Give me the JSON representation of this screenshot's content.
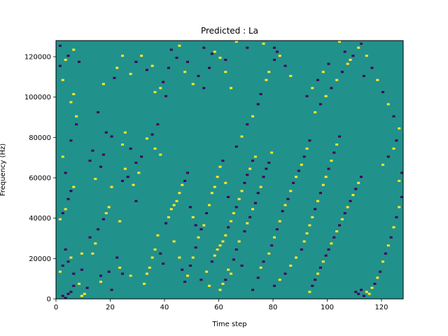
{
  "chart_data": {
    "type": "heatmap",
    "title": "Predicted : La",
    "xlabel": "Time step",
    "ylabel": "Frequency (Hz)",
    "xlim": [
      0,
      128
    ],
    "ylim": [
      0,
      128000
    ],
    "xticks": [
      0,
      20,
      40,
      60,
      80,
      100,
      120
    ],
    "yticks": [
      0,
      20000,
      40000,
      60000,
      80000,
      100000,
      120000
    ],
    "xtick_labels": [
      "0",
      "20",
      "40",
      "60",
      "80",
      "100",
      "120"
    ],
    "ytick_labels": [
      "0",
      "20000",
      "40000",
      "60000",
      "80000",
      "100000",
      "120000"
    ],
    "grid": false,
    "colormap": "viridis",
    "value_levels": [
      -1,
      0,
      1
    ],
    "colors": {
      "-1": "#440154",
      "0": "#21918c",
      "1": "#fde725"
    },
    "background_value": 0,
    "time_bins": 128,
    "freq_bins": 128,
    "cells": [
      [
        2,
        1,
        -1
      ],
      [
        3,
        0,
        -1
      ],
      [
        4,
        2,
        -1
      ],
      [
        5,
        3,
        -1
      ],
      [
        6,
        6,
        -1
      ],
      [
        8,
        7,
        1
      ],
      [
        9,
        1,
        1
      ],
      [
        10,
        2,
        1
      ],
      [
        11,
        5,
        -1
      ],
      [
        6,
        12,
        -1
      ],
      [
        9,
        14,
        -1
      ],
      [
        1,
        13,
        1
      ],
      [
        2,
        16,
        -1
      ],
      [
        4,
        18,
        -1
      ],
      [
        5,
        20,
        1
      ],
      [
        3,
        24,
        -1
      ],
      [
        9,
        22,
        1
      ],
      [
        13,
        22,
        1
      ],
      [
        16,
        11,
        -1
      ],
      [
        16,
        8,
        1
      ],
      [
        19,
        13,
        -1
      ],
      [
        20,
        4,
        -1
      ],
      [
        1,
        39,
        1
      ],
      [
        2,
        42,
        -1
      ],
      [
        3,
        44,
        1
      ],
      [
        4,
        49,
        -1
      ],
      [
        5,
        53,
        -1
      ],
      [
        6,
        55,
        1
      ],
      [
        3,
        62,
        -1
      ],
      [
        2,
        70,
        1
      ],
      [
        5,
        78,
        -1
      ],
      [
        7,
        86,
        -1
      ],
      [
        7,
        90,
        1
      ],
      [
        5,
        97,
        1
      ],
      [
        6,
        101,
        1
      ],
      [
        2,
        108,
        1
      ],
      [
        1,
        115,
        -1
      ],
      [
        3,
        118,
        1
      ],
      [
        4,
        120,
        -1
      ],
      [
        8,
        117,
        -1
      ],
      [
        6,
        123,
        1
      ],
      [
        1,
        125,
        -1
      ],
      [
        12,
        30,
        -1
      ],
      [
        14,
        27,
        1
      ],
      [
        15,
        34,
        -1
      ],
      [
        17,
        39,
        -1
      ],
      [
        18,
        42,
        1
      ],
      [
        19,
        45,
        1
      ],
      [
        20,
        55,
        1
      ],
      [
        24,
        58,
        -1
      ],
      [
        26,
        60,
        -1
      ],
      [
        25,
        64,
        1
      ],
      [
        28,
        56,
        1
      ],
      [
        30,
        62,
        1
      ],
      [
        29,
        48,
        -1
      ],
      [
        23,
        38,
        1
      ],
      [
        22,
        20,
        -1
      ],
      [
        23,
        15,
        1
      ],
      [
        24,
        12,
        -1
      ],
      [
        27,
        11,
        1
      ],
      [
        12,
        68,
        -1
      ],
      [
        13,
        73,
        -1
      ],
      [
        14,
        59,
        1
      ],
      [
        16,
        65,
        -1
      ],
      [
        17,
        71,
        -1
      ],
      [
        18,
        82,
        -1
      ],
      [
        20,
        80,
        -1
      ],
      [
        24,
        76,
        1
      ],
      [
        25,
        82,
        1
      ],
      [
        27,
        74,
        -1
      ],
      [
        29,
        67,
        -1
      ],
      [
        31,
        70,
        -1
      ],
      [
        33,
        79,
        1
      ],
      [
        35,
        81,
        -1
      ],
      [
        36,
        74,
        1
      ],
      [
        38,
        71,
        1
      ],
      [
        37,
        86,
        -1
      ],
      [
        15,
        92,
        -1
      ],
      [
        17,
        106,
        1
      ],
      [
        21,
        109,
        -1
      ],
      [
        22,
        114,
        1
      ],
      [
        24,
        120,
        1
      ],
      [
        27,
        111,
        1
      ],
      [
        29,
        117,
        -1
      ],
      [
        31,
        120,
        1
      ],
      [
        33,
        113,
        -1
      ],
      [
        35,
        115,
        1
      ],
      [
        36,
        102,
        1
      ],
      [
        38,
        104,
        1
      ],
      [
        40,
        100,
        -1
      ],
      [
        39,
        107,
        -1
      ],
      [
        41,
        114,
        -1
      ],
      [
        42,
        123,
        -1
      ],
      [
        44,
        119,
        -1
      ],
      [
        45,
        125,
        1
      ],
      [
        47,
        112,
        1
      ],
      [
        48,
        117,
        -1
      ],
      [
        50,
        106,
        1
      ],
      [
        52,
        110,
        -1
      ],
      [
        54,
        104,
        -1
      ],
      [
        56,
        114,
        -1
      ],
      [
        57,
        121,
        -1
      ],
      [
        60,
        119,
        1
      ],
      [
        62,
        112,
        1
      ],
      [
        64,
        104,
        1
      ],
      [
        32,
        7,
        1
      ],
      [
        33,
        12,
        1
      ],
      [
        34,
        15,
        1
      ],
      [
        35,
        20,
        1
      ],
      [
        36,
        24,
        1
      ],
      [
        37,
        31,
        1
      ],
      [
        38,
        22,
        -1
      ],
      [
        39,
        17,
        -1
      ],
      [
        40,
        37,
        -1
      ],
      [
        41,
        40,
        1
      ],
      [
        42,
        44,
        1
      ],
      [
        43,
        46,
        1
      ],
      [
        44,
        48,
        1
      ],
      [
        45,
        52,
        1
      ],
      [
        46,
        56,
        1
      ],
      [
        47,
        58,
        -1
      ],
      [
        48,
        62,
        -1
      ],
      [
        49,
        45,
        -1
      ],
      [
        50,
        40,
        1
      ],
      [
        51,
        36,
        -1
      ],
      [
        43,
        28,
        1
      ],
      [
        45,
        20,
        1
      ],
      [
        46,
        14,
        -1
      ],
      [
        47,
        8,
        -1
      ],
      [
        48,
        11,
        1
      ],
      [
        49,
        16,
        -1
      ],
      [
        50,
        20,
        1
      ],
      [
        51,
        25,
        -1
      ],
      [
        52,
        30,
        1
      ],
      [
        53,
        34,
        -1
      ],
      [
        54,
        36,
        1
      ],
      [
        55,
        42,
        -1
      ],
      [
        56,
        46,
        1
      ],
      [
        57,
        52,
        1
      ],
      [
        58,
        55,
        1
      ],
      [
        59,
        60,
        1
      ],
      [
        60,
        65,
        1
      ],
      [
        61,
        68,
        -1
      ],
      [
        62,
        57,
        1
      ],
      [
        63,
        50,
        -1
      ],
      [
        53,
        9,
        -1
      ],
      [
        55,
        13,
        1
      ],
      [
        56,
        6,
        1
      ],
      [
        57,
        18,
        -1
      ],
      [
        58,
        21,
        1
      ],
      [
        59,
        24,
        1
      ],
      [
        60,
        26,
        1
      ],
      [
        61,
        28,
        1
      ],
      [
        62,
        31,
        1
      ],
      [
        63,
        35,
        -1
      ],
      [
        64,
        38,
        1
      ],
      [
        65,
        42,
        1
      ],
      [
        66,
        45,
        -1
      ],
      [
        67,
        49,
        1
      ],
      [
        68,
        53,
        1
      ],
      [
        69,
        57,
        -1
      ],
      [
        70,
        61,
        -1
      ],
      [
        71,
        64,
        1
      ],
      [
        72,
        68,
        -1
      ],
      [
        73,
        70,
        1
      ],
      [
        60,
        4,
        1
      ],
      [
        61,
        7,
        1
      ],
      [
        62,
        9,
        -1
      ],
      [
        63,
        14,
        1
      ],
      [
        64,
        12,
        1
      ],
      [
        65,
        19,
        -1
      ],
      [
        66,
        24,
        -1
      ],
      [
        67,
        28,
        1
      ],
      [
        68,
        16,
        -1
      ],
      [
        69,
        33,
        -1
      ],
      [
        70,
        37,
        1
      ],
      [
        71,
        40,
        -1
      ],
      [
        72,
        44,
        1
      ],
      [
        73,
        47,
        -1
      ],
      [
        74,
        52,
        -1
      ],
      [
        75,
        55,
        1
      ],
      [
        76,
        60,
        -1
      ],
      [
        77,
        64,
        -1
      ],
      [
        78,
        67,
        -1
      ],
      [
        79,
        72,
        1
      ],
      [
        66,
        75,
        -1
      ],
      [
        68,
        80,
        1
      ],
      [
        70,
        86,
        -1
      ],
      [
        72,
        90,
        1
      ],
      [
        74,
        96,
        -1
      ],
      [
        75,
        101,
        -1
      ],
      [
        77,
        108,
        1
      ],
      [
        78,
        112,
        1
      ],
      [
        80,
        118,
        -1
      ],
      [
        81,
        122,
        -1
      ],
      [
        72,
        4,
        -1
      ],
      [
        74,
        10,
        -1
      ],
      [
        75,
        15,
        1
      ],
      [
        76,
        18,
        -1
      ],
      [
        78,
        22,
        1
      ],
      [
        79,
        26,
        -1
      ],
      [
        80,
        30,
        1
      ],
      [
        81,
        34,
        -1
      ],
      [
        82,
        38,
        1
      ],
      [
        83,
        43,
        -1
      ],
      [
        84,
        46,
        1
      ],
      [
        85,
        49,
        -1
      ],
      [
        86,
        53,
        1
      ],
      [
        87,
        57,
        -1
      ],
      [
        88,
        60,
        1
      ],
      [
        89,
        63,
        -1
      ],
      [
        90,
        66,
        1
      ],
      [
        91,
        70,
        -1
      ],
      [
        92,
        74,
        1
      ],
      [
        93,
        78,
        -1
      ],
      [
        80,
        6,
        -1
      ],
      [
        82,
        9,
        1
      ],
      [
        84,
        12,
        -1
      ],
      [
        86,
        16,
        1
      ],
      [
        88,
        20,
        1
      ],
      [
        90,
        24,
        -1
      ],
      [
        91,
        28,
        1
      ],
      [
        92,
        32,
        1
      ],
      [
        93,
        36,
        1
      ],
      [
        94,
        40,
        1
      ],
      [
        95,
        44,
        -1
      ],
      [
        96,
        48,
        1
      ],
      [
        97,
        52,
        -1
      ],
      [
        98,
        56,
        1
      ],
      [
        99,
        60,
        1
      ],
      [
        100,
        64,
        -1
      ],
      [
        101,
        68,
        1
      ],
      [
        102,
        72,
        -1
      ],
      [
        103,
        76,
        1
      ],
      [
        104,
        80,
        -1
      ],
      [
        93,
        3,
        1
      ],
      [
        94,
        6,
        -1
      ],
      [
        95,
        9,
        -1
      ],
      [
        96,
        12,
        1
      ],
      [
        97,
        15,
        -1
      ],
      [
        98,
        18,
        1
      ],
      [
        99,
        21,
        -1
      ],
      [
        100,
        24,
        -1
      ],
      [
        101,
        27,
        1
      ],
      [
        102,
        30,
        -1
      ],
      [
        103,
        33,
        1
      ],
      [
        104,
        36,
        -1
      ],
      [
        105,
        39,
        1
      ],
      [
        106,
        42,
        -1
      ],
      [
        107,
        45,
        1
      ],
      [
        108,
        48,
        -1
      ],
      [
        109,
        51,
        1
      ],
      [
        110,
        54,
        -1
      ],
      [
        111,
        57,
        1
      ],
      [
        112,
        60,
        -1
      ],
      [
        95,
        92,
        1
      ],
      [
        97,
        96,
        -1
      ],
      [
        99,
        100,
        1
      ],
      [
        101,
        104,
        -1
      ],
      [
        103,
        108,
        1
      ],
      [
        105,
        112,
        -1
      ],
      [
        107,
        116,
        1
      ],
      [
        109,
        120,
        -1
      ],
      [
        111,
        124,
        1
      ],
      [
        113,
        110,
        -1
      ],
      [
        110,
        3,
        -1
      ],
      [
        111,
        2,
        -1
      ],
      [
        112,
        4,
        -1
      ],
      [
        113,
        1,
        -1
      ],
      [
        114,
        3,
        1
      ],
      [
        115,
        2,
        1
      ],
      [
        116,
        5,
        1
      ],
      [
        117,
        7,
        -1
      ],
      [
        118,
        10,
        1
      ],
      [
        119,
        13,
        -1
      ],
      [
        120,
        18,
        1
      ],
      [
        121,
        22,
        -1
      ],
      [
        122,
        26,
        1
      ],
      [
        123,
        30,
        -1
      ],
      [
        124,
        35,
        1
      ],
      [
        125,
        40,
        -1
      ],
      [
        126,
        45,
        1
      ],
      [
        127,
        50,
        -1
      ],
      [
        126,
        58,
        1
      ],
      [
        127,
        62,
        -1
      ],
      [
        120,
        66,
        1
      ],
      [
        122,
        70,
        -1
      ],
      [
        124,
        74,
        1
      ],
      [
        125,
        78,
        -1
      ],
      [
        126,
        84,
        1
      ],
      [
        124,
        90,
        -1
      ],
      [
        122,
        96,
        1
      ],
      [
        120,
        102,
        -1
      ],
      [
        118,
        108,
        1
      ],
      [
        116,
        114,
        -1
      ],
      [
        114,
        120,
        1
      ],
      [
        112,
        126,
        -1
      ],
      [
        108,
        118,
        1
      ],
      [
        106,
        122,
        -1
      ],
      [
        104,
        127,
        1
      ],
      [
        100,
        116,
        -1
      ],
      [
        98,
        112,
        1
      ],
      [
        96,
        108,
        -1
      ],
      [
        94,
        104,
        1
      ],
      [
        92,
        100,
        -1
      ],
      [
        86,
        110,
        1
      ],
      [
        84,
        115,
        -1
      ],
      [
        82,
        120,
        1
      ],
      [
        80,
        124,
        -1
      ],
      [
        76,
        126,
        1
      ],
      [
        70,
        124,
        -1
      ],
      [
        66,
        127,
        1
      ],
      [
        62,
        118,
        -1
      ],
      [
        58,
        122,
        1
      ],
      [
        54,
        124,
        -1
      ]
    ]
  }
}
